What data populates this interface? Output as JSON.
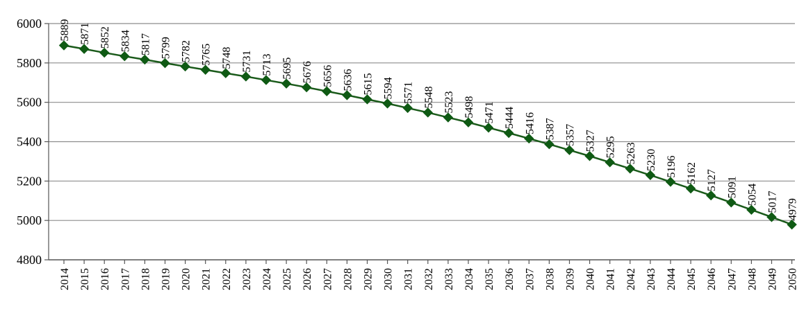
{
  "chart_data": {
    "type": "line",
    "title": "",
    "xlabel": "",
    "ylabel": "",
    "ylim": [
      4800,
      6000
    ],
    "yticks": [
      4800,
      5000,
      5200,
      5400,
      5600,
      5800,
      6000
    ],
    "grid": true,
    "legend": "none",
    "line_color": "#1a5a1a",
    "marker_color": "#0f5a14",
    "marker": "diamond",
    "categories": [
      "2014",
      "2015",
      "2016",
      "2017",
      "2018",
      "2019",
      "2020",
      "2021",
      "2022",
      "2023",
      "2024",
      "2025",
      "2026",
      "2027",
      "2028",
      "2029",
      "2030",
      "2031",
      "2032",
      "2033",
      "2034",
      "2035",
      "2036",
      "2037",
      "2038",
      "2039",
      "2040",
      "2041",
      "2042",
      "2043",
      "2044",
      "2045",
      "2046",
      "2047",
      "2048",
      "2049",
      "2050"
    ],
    "values": [
      5889,
      5871,
      5852,
      5834,
      5817,
      5799,
      5782,
      5765,
      5748,
      5731,
      5713,
      5695,
      5676,
      5656,
      5636,
      5615,
      5594,
      5571,
      5548,
      5523,
      5498,
      5471,
      5444,
      5416,
      5387,
      5357,
      5327,
      5295,
      5263,
      5230,
      5196,
      5162,
      5127,
      5091,
      5054,
      5017,
      4979
    ]
  }
}
